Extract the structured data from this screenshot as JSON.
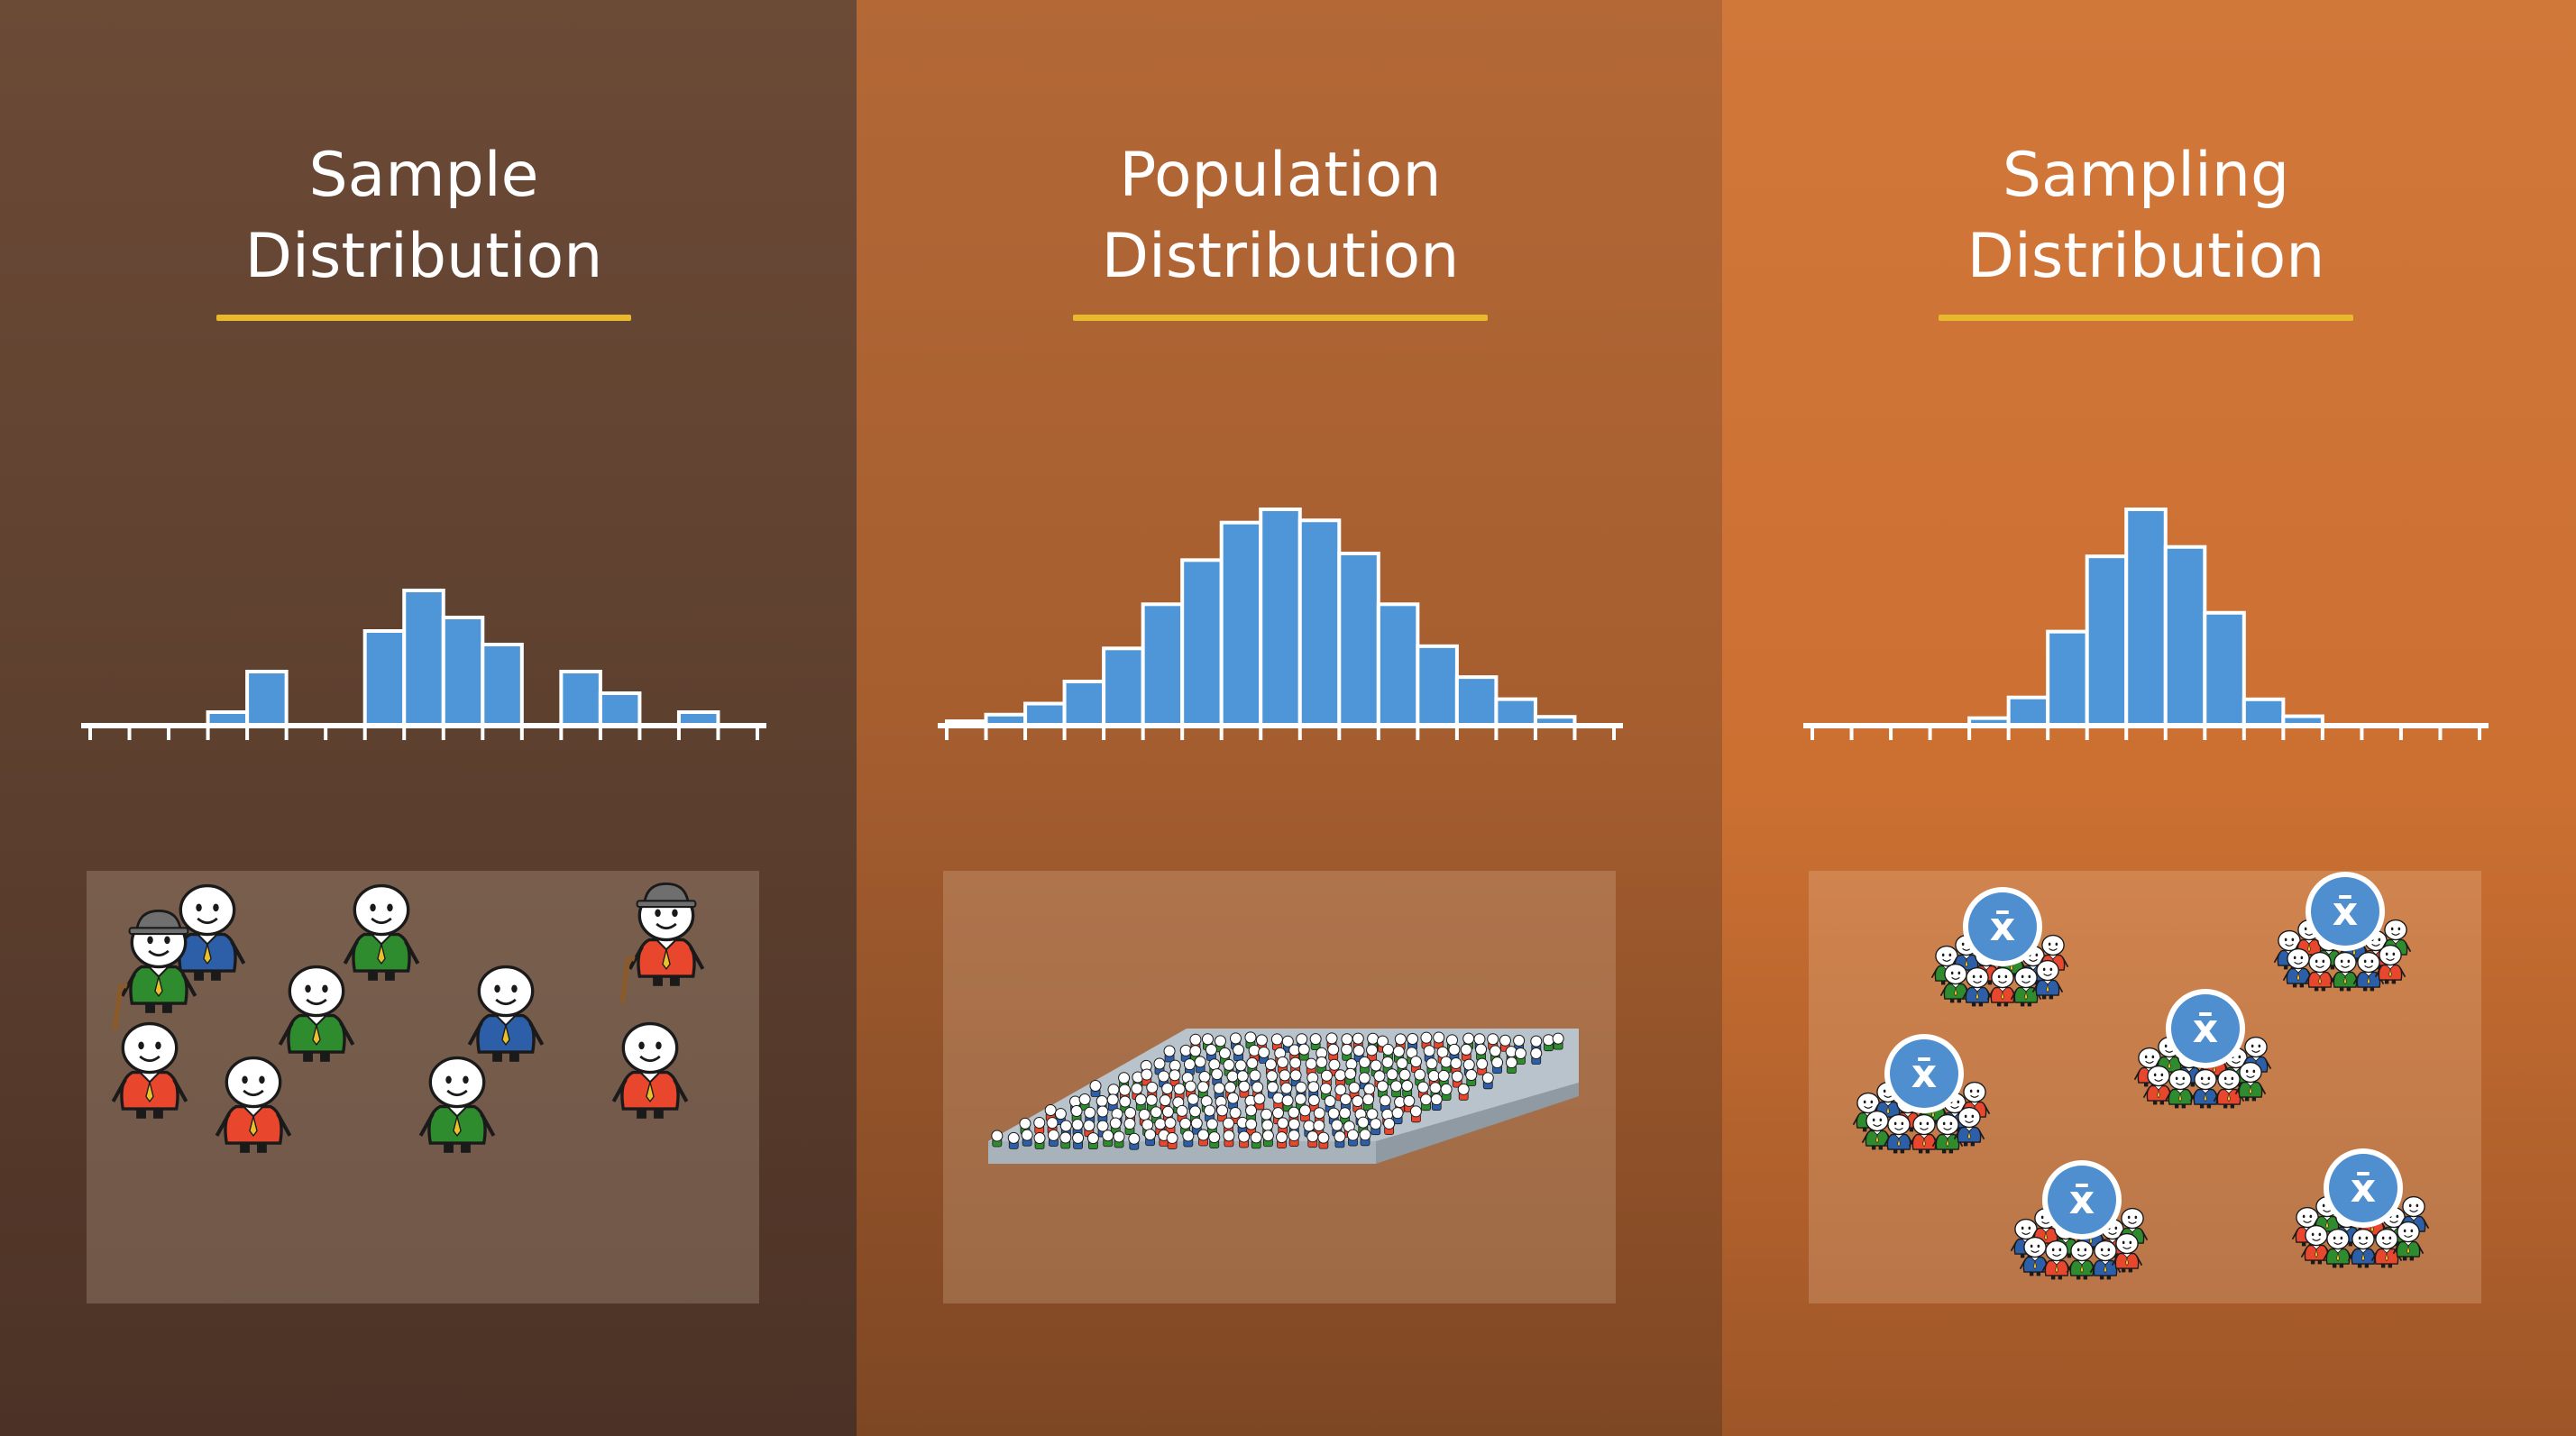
{
  "panels": [
    {
      "title_line1": "Sample",
      "title_line2": "Distribution",
      "chart_data": {
        "type": "bar",
        "title": "Sample Distribution",
        "bins": 17,
        "values": [
          0,
          0,
          0,
          0.5,
          2,
          0,
          0,
          3.5,
          5,
          4,
          3,
          0,
          2,
          1.2,
          0,
          0.5,
          0
        ],
        "color": "#4f96d8"
      },
      "illustration": "sample"
    },
    {
      "title_line1": "Population",
      "title_line2": "Distribution",
      "chart_data": {
        "type": "bar",
        "title": "Population Distribution",
        "bins": 17,
        "values": [
          0.2,
          0.5,
          1,
          2,
          3.5,
          5.5,
          7.5,
          9.2,
          9.8,
          9.3,
          7.8,
          5.5,
          3.6,
          2.2,
          1.2,
          0.4,
          0
        ],
        "color": "#4f96d8"
      },
      "illustration": "population"
    },
    {
      "title_line1": "Sampling",
      "title_line2": "Distribution",
      "chart_data": {
        "type": "bar",
        "title": "Sampling Distribution",
        "bins": 17,
        "values": [
          0,
          0,
          0,
          0,
          0.4,
          1.5,
          5,
          9,
          11.5,
          9.5,
          6,
          1.4,
          0.5,
          0,
          0,
          0,
          0
        ],
        "color": "#4f96d8"
      },
      "illustration": "sampling",
      "mean_symbol": "x̄"
    }
  ],
  "colors": {
    "title": "#ffffff",
    "underline": "#e8b92d",
    "bar": "#4f96d8",
    "axis": "#ffffff",
    "shirt_red": "#e8462d",
    "shirt_green": "#2e8b2e",
    "shirt_blue": "#2d5fa8"
  }
}
